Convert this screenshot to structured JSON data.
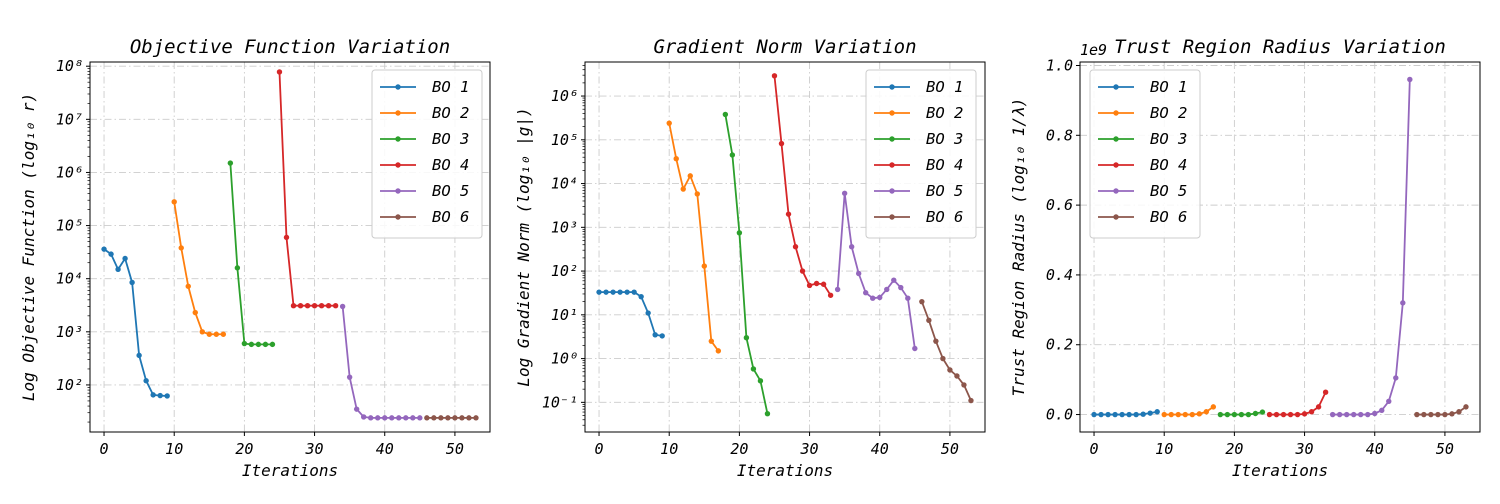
{
  "chart_data": [
    {
      "type": "line",
      "title": "Objective Function Variation",
      "xlabel": "Iterations",
      "ylabel": "Log Objective Function (log₁₀ r)",
      "yscale": "log",
      "xlim": [
        -2,
        55
      ],
      "ylim": [
        13,
        120000000
      ],
      "xticks": [
        0,
        10,
        20,
        30,
        40,
        50
      ],
      "xtick_labels": [
        "0",
        "10",
        "20",
        "30",
        "40",
        "50"
      ],
      "yticks": [
        100,
        1000,
        10000,
        100000,
        1000000,
        10000000,
        100000000
      ],
      "ytick_labels": [
        "10²",
        "10³",
        "10⁴",
        "10⁵",
        "10⁶",
        "10⁷",
        "10⁸"
      ],
      "grid": true,
      "legend_position": "top-right",
      "series": [
        {
          "name": "BO 1",
          "color": "#1f77b4",
          "x": [
            0,
            1,
            2,
            3,
            4,
            5,
            6,
            7,
            8,
            9
          ],
          "y": [
            36000,
            29000,
            15000,
            24000,
            8500,
            360,
            120,
            65,
            63,
            62
          ]
        },
        {
          "name": "BO 2",
          "color": "#ff7f0e",
          "x": [
            10,
            11,
            12,
            13,
            14,
            15,
            16,
            17
          ],
          "y": [
            280000,
            38000,
            7200,
            2300,
            1000,
            900,
            900,
            900
          ]
        },
        {
          "name": "BO 3",
          "color": "#2ca02c",
          "x": [
            18,
            19,
            20,
            21,
            22,
            23,
            24
          ],
          "y": [
            1500000,
            16000,
            600,
            580,
            580,
            580,
            580
          ]
        },
        {
          "name": "BO 4",
          "color": "#d62728",
          "x": [
            25,
            26,
            27,
            28,
            29,
            30,
            31,
            32,
            33
          ],
          "y": [
            78000000,
            60000,
            3100,
            3100,
            3100,
            3100,
            3100,
            3100,
            3100
          ]
        },
        {
          "name": "BO 5",
          "color": "#9467bd",
          "x": [
            34,
            35,
            36,
            37,
            38,
            39,
            40,
            41,
            42,
            43,
            44,
            45
          ],
          "y": [
            3000,
            140,
            35,
            25,
            24,
            24,
            24,
            24,
            24,
            24,
            24,
            24
          ]
        },
        {
          "name": "BO 6",
          "color": "#8c564b",
          "x": [
            46,
            47,
            48,
            49,
            50,
            51,
            52,
            53
          ],
          "y": [
            24,
            24,
            24,
            24,
            24,
            24,
            24,
            24
          ]
        }
      ]
    },
    {
      "type": "line",
      "title": "Gradient Norm Variation",
      "xlabel": "Iterations",
      "ylabel": "Log Gradient Norm (log₁₀ |g|)",
      "yscale": "log",
      "xlim": [
        -2,
        55
      ],
      "ylim": [
        0.021,
        6000000
      ],
      "xticks": [
        0,
        10,
        20,
        30,
        40,
        50
      ],
      "xtick_labels": [
        "0",
        "10",
        "20",
        "30",
        "40",
        "50"
      ],
      "yticks": [
        0.1,
        1,
        10,
        100,
        1000,
        10000,
        100000,
        1000000
      ],
      "ytick_labels": [
        "10⁻¹",
        "10⁰",
        "10¹",
        "10²",
        "10³",
        "10⁴",
        "10⁵",
        "10⁶"
      ],
      "grid": true,
      "legend_position": "top-right",
      "series": [
        {
          "name": "BO 1",
          "color": "#1f77b4",
          "x": [
            0,
            1,
            2,
            3,
            4,
            5,
            6,
            7,
            8,
            9
          ],
          "y": [
            33,
            33,
            33,
            33,
            33,
            33,
            26,
            11,
            3.5,
            3.3
          ]
        },
        {
          "name": "BO 2",
          "color": "#ff7f0e",
          "x": [
            10,
            11,
            12,
            13,
            14,
            15,
            16,
            17
          ],
          "y": [
            240000,
            37000,
            7500,
            15000,
            5800,
            130,
            2.5,
            1.5
          ]
        },
        {
          "name": "BO 3",
          "color": "#2ca02c",
          "x": [
            18,
            19,
            20,
            21,
            22,
            23,
            24
          ],
          "y": [
            380000,
            45000,
            750,
            3,
            0.58,
            0.31,
            0.055
          ]
        },
        {
          "name": "BO 4",
          "color": "#d62728",
          "x": [
            25,
            26,
            27,
            28,
            29,
            30,
            31,
            32,
            33
          ],
          "y": [
            2900000,
            82000,
            2000,
            360,
            100,
            47,
            52,
            50,
            28
          ]
        },
        {
          "name": "BO 5",
          "color": "#9467bd",
          "x": [
            34,
            35,
            36,
            37,
            38,
            39,
            40,
            41,
            42,
            43,
            44,
            45
          ],
          "y": [
            38,
            6000,
            360,
            88,
            32,
            24,
            25,
            38,
            62,
            42,
            24,
            1.7
          ]
        },
        {
          "name": "BO 6",
          "color": "#8c564b",
          "x": [
            46,
            47,
            48,
            49,
            50,
            51,
            52,
            53
          ],
          "y": [
            20,
            7.5,
            2.5,
            1,
            0.55,
            0.4,
            0.25,
            0.11
          ]
        }
      ]
    },
    {
      "type": "line",
      "title": "Trust Region Radius Variation",
      "offset_label": "1e9",
      "xlabel": "Iterations",
      "ylabel": "Trust Region Radius (log₁₀ 1/λ)",
      "yscale": "linear",
      "xlim": [
        -2,
        55
      ],
      "ylim": [
        -0.05,
        1.01
      ],
      "xticks": [
        0,
        10,
        20,
        30,
        40,
        50
      ],
      "xtick_labels": [
        "0",
        "10",
        "20",
        "30",
        "40",
        "50"
      ],
      "yticks": [
        0.0,
        0.2,
        0.4,
        0.6,
        0.8,
        1.0
      ],
      "ytick_labels": [
        "0.0",
        "0.2",
        "0.4",
        "0.6",
        "0.8",
        "1.0"
      ],
      "grid": true,
      "legend_position": "top-left",
      "series": [
        {
          "name": "BO 1",
          "color": "#1f77b4",
          "x": [
            0,
            1,
            2,
            3,
            4,
            5,
            6,
            7,
            8,
            9
          ],
          "y": [
            0,
            0,
            0,
            0,
            0,
            0,
            0,
            0.001,
            0.004,
            0.008
          ]
        },
        {
          "name": "BO 2",
          "color": "#ff7f0e",
          "x": [
            10,
            11,
            12,
            13,
            14,
            15,
            16,
            17
          ],
          "y": [
            0,
            0,
            0,
            0,
            0,
            0.002,
            0.008,
            0.022
          ]
        },
        {
          "name": "BO 3",
          "color": "#2ca02c",
          "x": [
            18,
            19,
            20,
            21,
            22,
            23,
            24
          ],
          "y": [
            0,
            0,
            0,
            0,
            0,
            0.003,
            0.007
          ]
        },
        {
          "name": "BO 4",
          "color": "#d62728",
          "x": [
            25,
            26,
            27,
            28,
            29,
            30,
            31,
            32,
            33
          ],
          "y": [
            0,
            0,
            0,
            0,
            0,
            0.002,
            0.008,
            0.022,
            0.064
          ]
        },
        {
          "name": "BO 5",
          "color": "#9467bd",
          "x": [
            34,
            35,
            36,
            37,
            38,
            39,
            40,
            41,
            42,
            43,
            44,
            45
          ],
          "y": [
            0,
            0,
            0,
            0,
            0,
            0,
            0.003,
            0.012,
            0.038,
            0.105,
            0.32,
            0.96
          ]
        },
        {
          "name": "BO 6",
          "color": "#8c564b",
          "x": [
            46,
            47,
            48,
            49,
            50,
            51,
            52,
            53
          ],
          "y": [
            0,
            0,
            0,
            0,
            0,
            0.002,
            0.008,
            0.022
          ]
        }
      ]
    }
  ]
}
